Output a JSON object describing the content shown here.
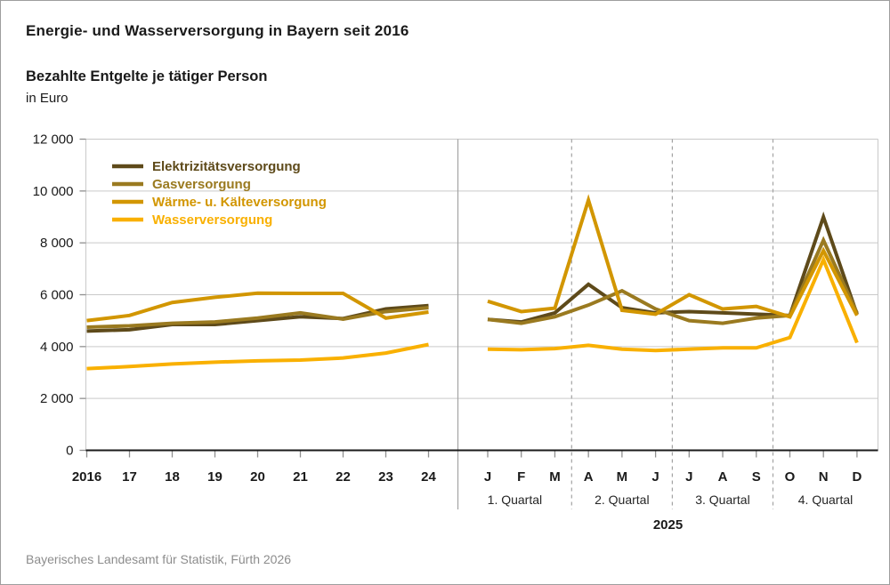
{
  "title": "Energie- und Wasserversorgung in Bayern seit 2016",
  "subtitle": "Bezahlte Entgelte je tätiger Person",
  "unit_label": "in Euro",
  "footer": "Bayerisches Landesamt für Statistik, Fürth 2026",
  "colors": {
    "elektrizitaet": "#5e4a1a",
    "gas": "#9a7a20",
    "waerme": "#d29600",
    "wasser": "#f9b000",
    "grid": "#c9c9c9",
    "divider": "#a3a3a3",
    "axis": "#1a1a1a",
    "tick": "#8f8f8f",
    "text": "#1a1a1a",
    "quartal_text": "#262626"
  },
  "chart_data": {
    "type": "line",
    "title": "Bezahlte Entgelte je tätiger Person in Euro",
    "ylabel": "Euro",
    "ylim": [
      0,
      12000
    ],
    "ytick_step": 2000,
    "ytick_labels": [
      "0",
      "2 000",
      "4 000",
      "6 000",
      "8 000",
      "10 000",
      "12 000"
    ],
    "grid": true,
    "legend_position": "top-left",
    "legend": [
      "Elektrizitätsversorgung",
      "Gasversorgung",
      "Wärme- u. Kälteversorgung",
      "Wasserversorgung"
    ],
    "panels": [
      {
        "name": "annual",
        "categories": [
          "2016",
          "17",
          "18",
          "19",
          "20",
          "21",
          "22",
          "23",
          "24"
        ],
        "series": [
          {
            "name": "Elektrizitätsversorgung",
            "color": "#5e4a1a",
            "values": [
              4600,
              4650,
              4850,
              4850,
              5000,
              5150,
              5080,
              5450,
              5580
            ]
          },
          {
            "name": "Gasversorgung",
            "color": "#9a7a20",
            "values": [
              4750,
              4800,
              4900,
              4950,
              5100,
              5300,
              5060,
              5350,
              5500
            ]
          },
          {
            "name": "Wärme- u. Kälteversorgung",
            "color": "#d29600",
            "values": [
              5000,
              5200,
              5700,
              5900,
              6060,
              6050,
              6050,
              5100,
              5330
            ]
          },
          {
            "name": "Wasserversorgung",
            "color": "#f9b000",
            "values": [
              3150,
              3230,
              3330,
              3400,
              3450,
              3480,
              3560,
              3750,
              4080
            ]
          }
        ]
      },
      {
        "name": "monthly-2025",
        "categories": [
          "J",
          "F",
          "M",
          "A",
          "M",
          "J",
          "J",
          "A",
          "S",
          "O",
          "N",
          "D"
        ],
        "quarter_labels": [
          "1. Quartal",
          "2. Quartal",
          "3. Quartal",
          "4. Quartal"
        ],
        "year_label": "2025",
        "series": [
          {
            "name": "Elektrizitätsversorgung",
            "color": "#5e4a1a",
            "values": [
              5050,
              4950,
              5300,
              6400,
              5500,
              5300,
              5350,
              5300,
              5250,
              5200,
              9000,
              5250
            ]
          },
          {
            "name": "Gasversorgung",
            "color": "#9a7a20",
            "values": [
              5050,
              4900,
              5150,
              5600,
              6150,
              5450,
              5000,
              4900,
              5100,
              5200,
              8100,
              5300
            ]
          },
          {
            "name": "Wärme- u. Kälteversorgung",
            "color": "#d29600",
            "values": [
              5750,
              5350,
              5480,
              9650,
              5400,
              5250,
              6000,
              5450,
              5550,
              5150,
              7700,
              5200
            ]
          },
          {
            "name": "Wasserversorgung",
            "color": "#f9b000",
            "values": [
              3900,
              3880,
              3920,
              4050,
              3900,
              3850,
              3900,
              3950,
              3950,
              4350,
              7350,
              4150
            ]
          }
        ]
      }
    ]
  }
}
